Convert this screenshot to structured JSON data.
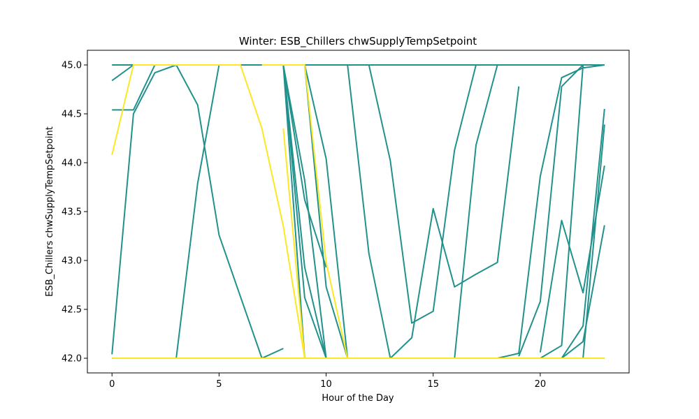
{
  "chart_data": {
    "type": "line",
    "title": "Winter: ESB_Chillers chwSupplyTempSetpoint",
    "xlabel": "Hour of the Day",
    "ylabel": "ESB_Chillers chwSupplyTempSetpoint",
    "xlim": [
      -1.15,
      24.15
    ],
    "ylim": [
      41.85,
      45.15
    ],
    "xticks": [
      0,
      5,
      10,
      15,
      20
    ],
    "yticks": [
      42.0,
      42.5,
      43.0,
      43.5,
      44.0,
      44.5,
      45.0
    ],
    "ytick_labels": [
      "42.0",
      "42.5",
      "43.0",
      "43.5",
      "44.0",
      "44.5",
      "45.0"
    ],
    "grid": false,
    "legend": "none",
    "colors": {
      "teal": "#21918c",
      "yellow": "#fde725"
    },
    "series": [
      {
        "color": "teal",
        "x": [
          0,
          1,
          2,
          3,
          4,
          5,
          6,
          7,
          8,
          9,
          10,
          11,
          12,
          13,
          14,
          15,
          16,
          17,
          18,
          19,
          20,
          21,
          22,
          23
        ],
        "y": [
          45,
          45,
          45,
          45,
          45,
          45,
          45,
          45,
          45,
          45,
          45,
          45,
          45,
          45,
          45,
          45,
          45,
          45,
          45,
          45,
          45,
          45,
          45,
          45
        ]
      },
      {
        "color": "teal",
        "x": [
          0,
          1,
          2,
          3,
          4,
          5,
          6,
          7,
          8,
          9,
          10,
          11,
          12,
          13,
          14,
          15,
          16,
          17,
          18,
          19,
          20,
          21,
          22,
          23
        ],
        "y": [
          42,
          42,
          42,
          42,
          42,
          42,
          42,
          42,
          42,
          42,
          42,
          42,
          42,
          42,
          42,
          42,
          42,
          42,
          42,
          42,
          42,
          42,
          42,
          42
        ]
      },
      {
        "color": "teal",
        "x": [
          0,
          1,
          2,
          3,
          4,
          5,
          6,
          7,
          8,
          9,
          10,
          11,
          12,
          13,
          14,
          15,
          16,
          17,
          18,
          19,
          20,
          21,
          22,
          23
        ],
        "y": [
          44.84,
          45,
          45,
          45,
          45,
          45,
          45,
          45,
          45,
          45,
          45,
          45,
          45,
          45,
          45,
          45,
          45,
          45,
          45,
          45,
          45,
          45,
          45,
          45
        ]
      },
      {
        "color": "teal",
        "x": [
          0,
          1,
          2,
          3,
          4,
          5,
          6,
          7,
          8,
          9,
          10,
          11
        ],
        "y": [
          44.54,
          44.54,
          45,
          45,
          45,
          45,
          45,
          45,
          45,
          45,
          42.73,
          42
        ]
      },
      {
        "color": "teal",
        "x": [
          0,
          1,
          2,
          3,
          4,
          5,
          6,
          7,
          8
        ],
        "y": [
          42.04,
          44.5,
          44.92,
          45,
          44.59,
          43.26,
          42.63,
          42,
          42.1
        ]
      },
      {
        "color": "teal",
        "x": [
          3,
          4,
          5,
          6,
          7,
          8,
          9,
          10
        ],
        "y": [
          42,
          43.79,
          45,
          45,
          45,
          45,
          42.93,
          42
        ]
      },
      {
        "color": "teal",
        "x": [
          8,
          9,
          10
        ],
        "y": [
          45,
          43.82,
          42
        ]
      },
      {
        "color": "teal",
        "x": [
          8,
          9,
          10,
          11
        ],
        "y": [
          45,
          42.62,
          42,
          42
        ]
      },
      {
        "color": "teal",
        "x": [
          8,
          9,
          10
        ],
        "y": [
          45,
          43.62,
          42.93
        ]
      },
      {
        "color": "teal",
        "x": [
          8,
          9
        ],
        "y": [
          45,
          42
        ]
      },
      {
        "color": "teal",
        "x": [
          8,
          9,
          10,
          11
        ],
        "y": [
          45,
          45,
          44.04,
          42
        ]
      },
      {
        "color": "teal",
        "x": [
          11,
          12,
          13,
          14
        ],
        "y": [
          45,
          43.07,
          42,
          42
        ]
      },
      {
        "color": "teal",
        "x": [
          12,
          13,
          14,
          15,
          16,
          17,
          18,
          19,
          20
        ],
        "y": [
          45,
          44.02,
          42.36,
          42.48,
          44.13,
          45,
          45,
          45,
          45
        ]
      },
      {
        "color": "teal",
        "x": [
          13,
          14,
          15,
          16,
          17,
          18,
          19
        ],
        "y": [
          42,
          42.21,
          43.53,
          42.73,
          42.86,
          42.98,
          44.78
        ]
      },
      {
        "color": "teal",
        "x": [
          16,
          17,
          18,
          19,
          20,
          21,
          22,
          23
        ],
        "y": [
          42,
          44.18,
          45,
          45,
          45,
          45,
          45,
          45
        ]
      },
      {
        "color": "teal",
        "x": [
          18,
          19,
          20,
          21,
          22,
          23
        ],
        "y": [
          42,
          42.05,
          43.86,
          44.87,
          44.97,
          45
        ]
      },
      {
        "color": "teal",
        "x": [
          19,
          20,
          21,
          22,
          23
        ],
        "y": [
          42.02,
          42.58,
          44.78,
          45,
          45
        ]
      },
      {
        "color": "teal",
        "x": [
          20,
          21,
          22,
          23
        ],
        "y": [
          42.06,
          43.41,
          42.67,
          43.97
        ]
      },
      {
        "color": "teal",
        "x": [
          20,
          21,
          22,
          23
        ],
        "y": [
          42,
          42.13,
          45,
          45
        ]
      },
      {
        "color": "teal",
        "x": [
          21,
          22,
          23
        ],
        "y": [
          42,
          42.33,
          44.55
        ]
      },
      {
        "color": "teal",
        "x": [
          21,
          22,
          23
        ],
        "y": [
          42,
          42.17,
          43.36
        ]
      },
      {
        "color": "teal",
        "x": [
          22,
          23
        ],
        "y": [
          42,
          44.39
        ]
      },
      {
        "color": "yellow",
        "x": [
          0,
          1,
          2,
          3,
          4,
          5,
          6,
          7,
          8,
          9,
          10,
          11,
          12,
          13,
          14,
          15,
          16,
          17,
          18,
          19,
          20,
          21,
          22,
          23
        ],
        "y": [
          42,
          42,
          42,
          42,
          42,
          42,
          42,
          42,
          42,
          42,
          42,
          42,
          42,
          42,
          42,
          42,
          42,
          42,
          42,
          42,
          42,
          42,
          42,
          42
        ]
      },
      {
        "color": "yellow",
        "x": [
          0,
          1,
          2,
          3,
          4,
          5,
          6,
          7,
          8,
          9
        ],
        "y": [
          44.08,
          45,
          45,
          45,
          45,
          45,
          45,
          44.35,
          43.35,
          42
        ]
      },
      {
        "color": "yellow",
        "x": [
          8,
          9
        ],
        "y": [
          44.35,
          42
        ]
      },
      {
        "color": "yellow",
        "x": [
          7,
          8,
          9,
          10,
          11
        ],
        "y": [
          45,
          45,
          45,
          42.98,
          42
        ]
      }
    ]
  }
}
